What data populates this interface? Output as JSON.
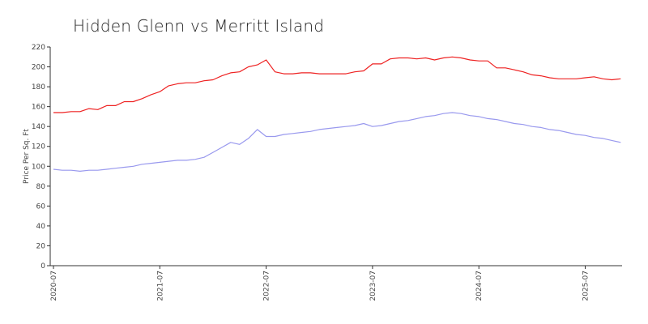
{
  "chart_data": {
    "type": "line",
    "title": "Hidden Glenn vs Merritt Island",
    "xlabel": "",
    "ylabel": "Price Per Sq. Ft",
    "ylim": [
      0,
      220
    ],
    "yticks": [
      "0",
      "20",
      "40",
      "60",
      "80",
      "100",
      "120",
      "140",
      "160",
      "180",
      "200",
      "220"
    ],
    "xticks": [
      {
        "label": "2020-07",
        "x": "2020-07"
      },
      {
        "label": "2021-07",
        "x": "2021-07"
      },
      {
        "label": "2022-07",
        "x": "2022-07"
      },
      {
        "label": "2023-07",
        "x": "2023-07"
      },
      {
        "label": "2024-07",
        "x": "2024-07"
      },
      {
        "label": "2025-07",
        "x": "2025-07"
      }
    ],
    "xlim": [
      "2020-07",
      "2025-12"
    ],
    "grid": false,
    "legend": "none",
    "series": [
      {
        "color": "#ee2222",
        "points": [
          [
            "2020-07",
            154
          ],
          [
            "2020-08",
            154
          ],
          [
            "2020-09",
            155
          ],
          [
            "2020-10",
            155
          ],
          [
            "2020-11",
            158
          ],
          [
            "2020-12",
            157
          ],
          [
            "2021-01",
            161
          ],
          [
            "2021-02",
            161
          ],
          [
            "2021-03",
            165
          ],
          [
            "2021-04",
            165
          ],
          [
            "2021-05",
            168
          ],
          [
            "2021-06",
            172
          ],
          [
            "2021-07",
            175
          ],
          [
            "2021-08",
            181
          ],
          [
            "2021-09",
            183
          ],
          [
            "2021-10",
            184
          ],
          [
            "2021-11",
            184
          ],
          [
            "2021-12",
            186
          ],
          [
            "2022-01",
            187
          ],
          [
            "2022-02",
            191
          ],
          [
            "2022-03",
            194
          ],
          [
            "2022-04",
            195
          ],
          [
            "2022-05",
            200
          ],
          [
            "2022-06",
            202
          ],
          [
            "2022-07",
            207
          ],
          [
            "2022-08",
            195
          ],
          [
            "2022-09",
            193
          ],
          [
            "2022-10",
            193
          ],
          [
            "2022-11",
            194
          ],
          [
            "2022-12",
            194
          ],
          [
            "2023-01",
            193
          ],
          [
            "2023-02",
            193
          ],
          [
            "2023-03",
            193
          ],
          [
            "2023-04",
            193
          ],
          [
            "2023-05",
            195
          ],
          [
            "2023-06",
            196
          ],
          [
            "2023-07",
            203
          ],
          [
            "2023-08",
            203
          ],
          [
            "2023-09",
            208
          ],
          [
            "2023-10",
            209
          ],
          [
            "2023-11",
            209
          ],
          [
            "2023-12",
            208
          ],
          [
            "2024-01",
            209
          ],
          [
            "2024-02",
            207
          ],
          [
            "2024-03",
            209
          ],
          [
            "2024-04",
            210
          ],
          [
            "2024-05",
            209
          ],
          [
            "2024-06",
            207
          ],
          [
            "2024-07",
            206
          ],
          [
            "2024-08",
            206
          ],
          [
            "2024-09",
            199
          ],
          [
            "2024-10",
            199
          ],
          [
            "2024-11",
            197
          ],
          [
            "2024-12",
            195
          ],
          [
            "2025-01",
            192
          ],
          [
            "2025-02",
            191
          ],
          [
            "2025-03",
            189
          ],
          [
            "2025-04",
            188
          ],
          [
            "2025-05",
            188
          ],
          [
            "2025-06",
            188
          ],
          [
            "2025-07",
            189
          ],
          [
            "2025-08",
            190
          ],
          [
            "2025-09",
            188
          ],
          [
            "2025-10",
            187
          ],
          [
            "2025-11",
            188
          ]
        ]
      },
      {
        "color": "#9999ee",
        "points": [
          [
            "2020-07",
            97
          ],
          [
            "2020-08",
            96
          ],
          [
            "2020-09",
            96
          ],
          [
            "2020-10",
            95
          ],
          [
            "2020-11",
            96
          ],
          [
            "2020-12",
            96
          ],
          [
            "2021-01",
            97
          ],
          [
            "2021-02",
            98
          ],
          [
            "2021-03",
            99
          ],
          [
            "2021-04",
            100
          ],
          [
            "2021-05",
            102
          ],
          [
            "2021-06",
            103
          ],
          [
            "2021-07",
            104
          ],
          [
            "2021-08",
            105
          ],
          [
            "2021-09",
            106
          ],
          [
            "2021-10",
            106
          ],
          [
            "2021-11",
            107
          ],
          [
            "2021-12",
            109
          ],
          [
            "2022-01",
            114
          ],
          [
            "2022-02",
            119
          ],
          [
            "2022-03",
            124
          ],
          [
            "2022-04",
            122
          ],
          [
            "2022-05",
            128
          ],
          [
            "2022-06",
            137
          ],
          [
            "2022-07",
            130
          ],
          [
            "2022-08",
            130
          ],
          [
            "2022-09",
            132
          ],
          [
            "2022-10",
            133
          ],
          [
            "2022-11",
            134
          ],
          [
            "2022-12",
            135
          ],
          [
            "2023-01",
            137
          ],
          [
            "2023-02",
            138
          ],
          [
            "2023-03",
            139
          ],
          [
            "2023-04",
            140
          ],
          [
            "2023-05",
            141
          ],
          [
            "2023-06",
            143
          ],
          [
            "2023-07",
            140
          ],
          [
            "2023-08",
            141
          ],
          [
            "2023-09",
            143
          ],
          [
            "2023-10",
            145
          ],
          [
            "2023-11",
            146
          ],
          [
            "2023-12",
            148
          ],
          [
            "2024-01",
            150
          ],
          [
            "2024-02",
            151
          ],
          [
            "2024-03",
            153
          ],
          [
            "2024-04",
            154
          ],
          [
            "2024-05",
            153
          ],
          [
            "2024-06",
            151
          ],
          [
            "2024-07",
            150
          ],
          [
            "2024-08",
            148
          ],
          [
            "2024-09",
            147
          ],
          [
            "2024-10",
            145
          ],
          [
            "2024-11",
            143
          ],
          [
            "2024-12",
            142
          ],
          [
            "2025-01",
            140
          ],
          [
            "2025-02",
            139
          ],
          [
            "2025-03",
            137
          ],
          [
            "2025-04",
            136
          ],
          [
            "2025-05",
            134
          ],
          [
            "2025-06",
            132
          ],
          [
            "2025-07",
            131
          ],
          [
            "2025-08",
            129
          ],
          [
            "2025-09",
            128
          ],
          [
            "2025-10",
            126
          ],
          [
            "2025-11",
            124
          ]
        ]
      }
    ]
  }
}
